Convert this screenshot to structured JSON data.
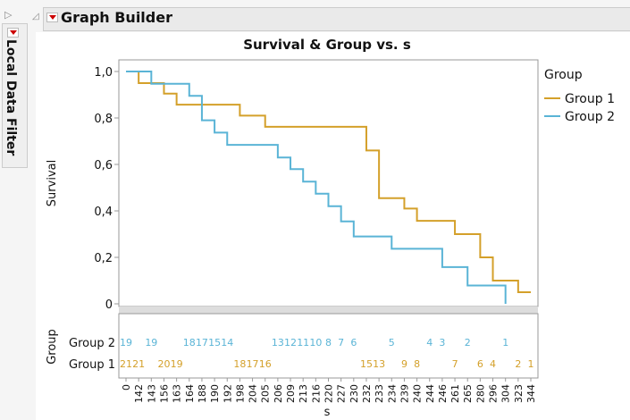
{
  "window": {
    "title": "Graph Builder",
    "local_filter_label": "Local Data Filter"
  },
  "colors": {
    "group1": "#d4a02a",
    "group2": "#5ab4d6"
  },
  "chart_data": {
    "type": "line",
    "title": "Survival & Group vs. s",
    "xlabel": "s",
    "ylabel": "Survival",
    "ylim": [
      0,
      1
    ],
    "y_ticks": [
      "0",
      "0,2",
      "0,4",
      "0,6",
      "0,8",
      "1,0"
    ],
    "x_ticks": [
      "0",
      "142",
      "143",
      "156",
      "163",
      "164",
      "188",
      "190",
      "192",
      "198",
      "204",
      "205",
      "206",
      "209",
      "213",
      "216",
      "220",
      "227",
      "230",
      "232",
      "233",
      "234",
      "239",
      "240",
      "244",
      "246",
      "261",
      "265",
      "280",
      "296",
      "304",
      "323",
      "344"
    ],
    "legend": {
      "title": "Group",
      "placement": "right",
      "entries": [
        "Group 1",
        "Group 2"
      ]
    },
    "series": [
      {
        "name": "Group 1",
        "steps": [
          [
            0,
            1.0
          ],
          [
            142,
            0.95
          ],
          [
            156,
            0.905
          ],
          [
            163,
            0.857
          ],
          [
            198,
            0.81
          ],
          [
            205,
            0.762
          ],
          [
            232,
            0.66
          ],
          [
            233,
            0.455
          ],
          [
            239,
            0.41
          ],
          [
            240,
            0.357
          ],
          [
            261,
            0.3
          ],
          [
            280,
            0.2
          ],
          [
            296,
            0.1
          ],
          [
            323,
            0.05
          ],
          [
            344,
            0.05
          ]
        ]
      },
      {
        "name": "Group 2",
        "steps": [
          [
            0,
            1.0
          ],
          [
            143,
            0.947
          ],
          [
            164,
            0.895
          ],
          [
            188,
            0.79
          ],
          [
            190,
            0.737
          ],
          [
            192,
            0.684
          ],
          [
            206,
            0.63
          ],
          [
            209,
            0.58
          ],
          [
            213,
            0.526
          ],
          [
            216,
            0.474
          ],
          [
            220,
            0.42
          ],
          [
            227,
            0.355
          ],
          [
            230,
            0.29
          ],
          [
            234,
            0.237
          ],
          [
            246,
            0.158
          ],
          [
            265,
            0.079
          ],
          [
            304,
            0.0
          ]
        ]
      }
    ],
    "at_risk": {
      "axis_label": "Group",
      "rows": [
        {
          "name": "Group 2",
          "values": [
            [
              0,
              "19"
            ],
            [
              143,
              "19"
            ],
            [
              164,
              "18"
            ],
            [
              188,
              "17"
            ],
            [
              190,
              "15"
            ],
            [
              192,
              "14"
            ],
            [
              206,
              "13"
            ],
            [
              209,
              "12"
            ],
            [
              213,
              "11"
            ],
            [
              216,
              "10"
            ],
            [
              220,
              "8"
            ],
            [
              227,
              "7"
            ],
            [
              230,
              "6"
            ],
            [
              234,
              "5"
            ],
            [
              244,
              "4"
            ],
            [
              246,
              "3"
            ],
            [
              265,
              "2"
            ],
            [
              304,
              "1"
            ]
          ]
        },
        {
          "name": "Group 1",
          "values": [
            [
              0,
              "21"
            ],
            [
              142,
              "21"
            ],
            [
              156,
              "20"
            ],
            [
              163,
              "19"
            ],
            [
              198,
              "18"
            ],
            [
              204,
              "17"
            ],
            [
              205,
              "16"
            ],
            [
              232,
              "15"
            ],
            [
              233,
              "13"
            ],
            [
              239,
              "9"
            ],
            [
              240,
              "8"
            ],
            [
              261,
              "7"
            ],
            [
              280,
              "6"
            ],
            [
              296,
              "4"
            ],
            [
              323,
              "2"
            ],
            [
              344,
              "1"
            ]
          ]
        }
      ]
    }
  }
}
